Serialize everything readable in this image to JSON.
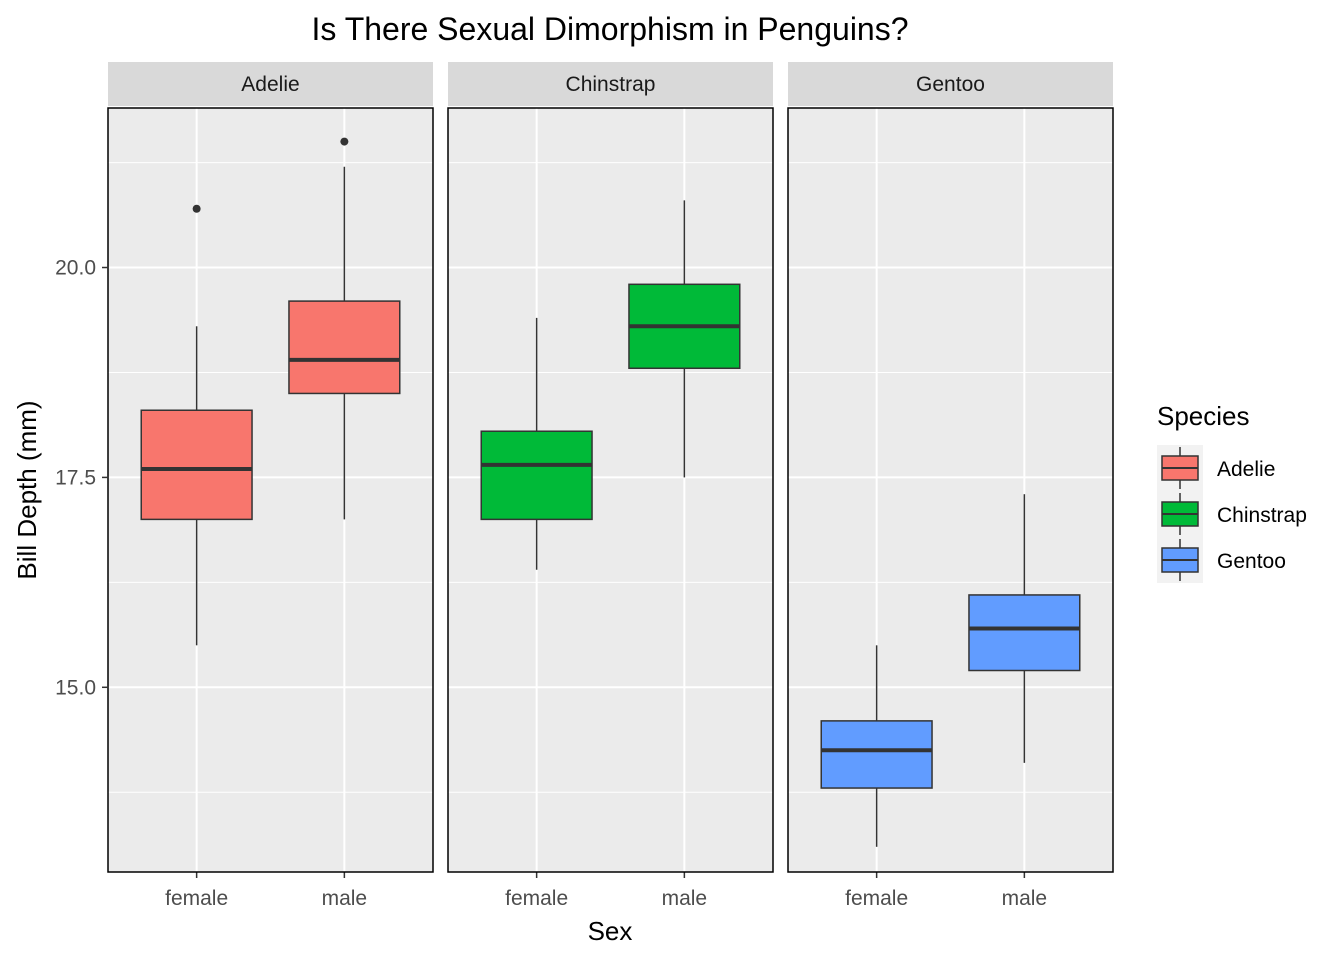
{
  "chart_data": {
    "type": "boxplot",
    "title": "Is There Sexual Dimorphism in Penguins?",
    "xlabel": "Sex",
    "ylabel": "Bill Depth (mm)",
    "ylim": [
      12.8,
      21.9
    ],
    "yticks": [
      15.0,
      17.5,
      20.0
    ],
    "ytick_labels": [
      "15.0",
      "17.5",
      "20.0"
    ],
    "categories": [
      "female",
      "male"
    ],
    "grid": true,
    "facet_by": "Species",
    "legend": {
      "title": "Species",
      "position": "right"
    },
    "panels": [
      {
        "name": "Adelie",
        "color": "#F8766D",
        "boxes": [
          {
            "category": "female",
            "whisker_low": 15.5,
            "q1": 17.0,
            "median": 17.6,
            "q3": 18.3,
            "whisker_high": 19.3,
            "outliers": [
              20.7
            ]
          },
          {
            "category": "male",
            "whisker_low": 17.0,
            "q1": 18.5,
            "median": 18.9,
            "q3": 19.6,
            "whisker_high": 21.2,
            "outliers": [
              21.5
            ]
          }
        ]
      },
      {
        "name": "Chinstrap",
        "color": "#00BA38",
        "boxes": [
          {
            "category": "female",
            "whisker_low": 16.4,
            "q1": 17.0,
            "median": 17.65,
            "q3": 18.05,
            "whisker_high": 19.4,
            "outliers": []
          },
          {
            "category": "male",
            "whisker_low": 17.5,
            "q1": 18.8,
            "median": 19.3,
            "q3": 19.8,
            "whisker_high": 20.8,
            "outliers": []
          }
        ]
      },
      {
        "name": "Gentoo",
        "color": "#619CFF",
        "boxes": [
          {
            "category": "female",
            "whisker_low": 13.1,
            "q1": 13.8,
            "median": 14.25,
            "q3": 14.6,
            "whisker_high": 15.5,
            "outliers": []
          },
          {
            "category": "male",
            "whisker_low": 14.1,
            "q1": 15.2,
            "median": 15.7,
            "q3": 16.1,
            "whisker_high": 17.3,
            "outliers": []
          }
        ]
      }
    ]
  }
}
